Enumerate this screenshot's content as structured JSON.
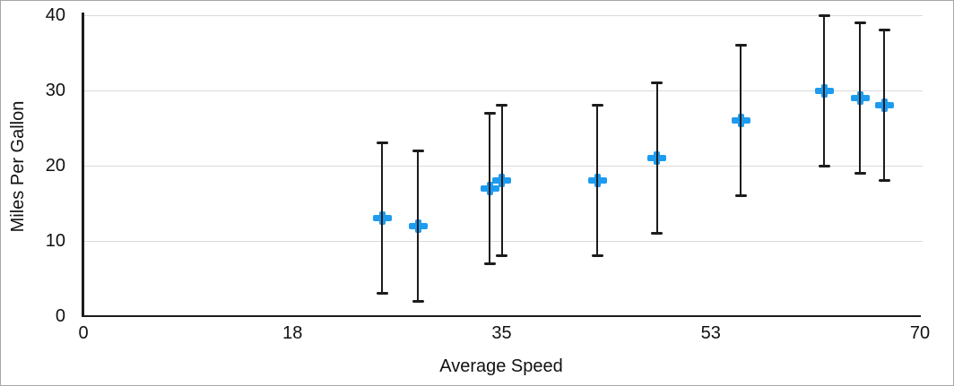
{
  "chart_data": {
    "type": "scatter",
    "title": "",
    "xlabel": "Average Speed",
    "ylabel": "Miles Per Gallon",
    "xlim": [
      0,
      70
    ],
    "ylim": [
      0,
      40
    ],
    "x_ticks": [
      {
        "value": 0,
        "label": "0"
      },
      {
        "value": 17.5,
        "label": "18"
      },
      {
        "value": 35,
        "label": "35"
      },
      {
        "value": 52.5,
        "label": "53"
      },
      {
        "value": 70,
        "label": "70"
      }
    ],
    "y_ticks": [
      {
        "value": 0,
        "label": "0"
      },
      {
        "value": 10,
        "label": "10"
      },
      {
        "value": 20,
        "label": "20"
      },
      {
        "value": 30,
        "label": "30"
      },
      {
        "value": 40,
        "label": "40"
      }
    ],
    "grid": {
      "horizontal": true,
      "vertical": false
    },
    "legend_position": "none",
    "series": [
      {
        "name": "Miles Per Gallon",
        "marker": "plus",
        "error_bars": "y",
        "points": [
          {
            "x": 25,
            "y": 13,
            "y_error_plus": 10,
            "y_error_minus": 10
          },
          {
            "x": 28,
            "y": 12,
            "y_error_plus": 10,
            "y_error_minus": 10
          },
          {
            "x": 34,
            "y": 17,
            "y_error_plus": 10,
            "y_error_minus": 10
          },
          {
            "x": 35,
            "y": 18,
            "y_error_plus": 10,
            "y_error_minus": 10
          },
          {
            "x": 43,
            "y": 18,
            "y_error_plus": 10,
            "y_error_minus": 10
          },
          {
            "x": 48,
            "y": 21,
            "y_error_plus": 10,
            "y_error_minus": 10
          },
          {
            "x": 55,
            "y": 26,
            "y_error_plus": 10,
            "y_error_minus": 10
          },
          {
            "x": 62,
            "y": 30,
            "y_error_plus": 10,
            "y_error_minus": 10
          },
          {
            "x": 65,
            "y": 29,
            "y_error_plus": 10,
            "y_error_minus": 10
          },
          {
            "x": 67,
            "y": 28,
            "y_error_plus": 10,
            "y_error_minus": 10
          }
        ]
      }
    ]
  },
  "colors": {
    "marker": "#1d9bf0",
    "error_bar": "#1c1c1c",
    "axis_line": "#1c1c1c",
    "gridline": "#dadada",
    "text": "#111111",
    "background": "#ffffff",
    "figure_border": "#a6a6a6"
  }
}
